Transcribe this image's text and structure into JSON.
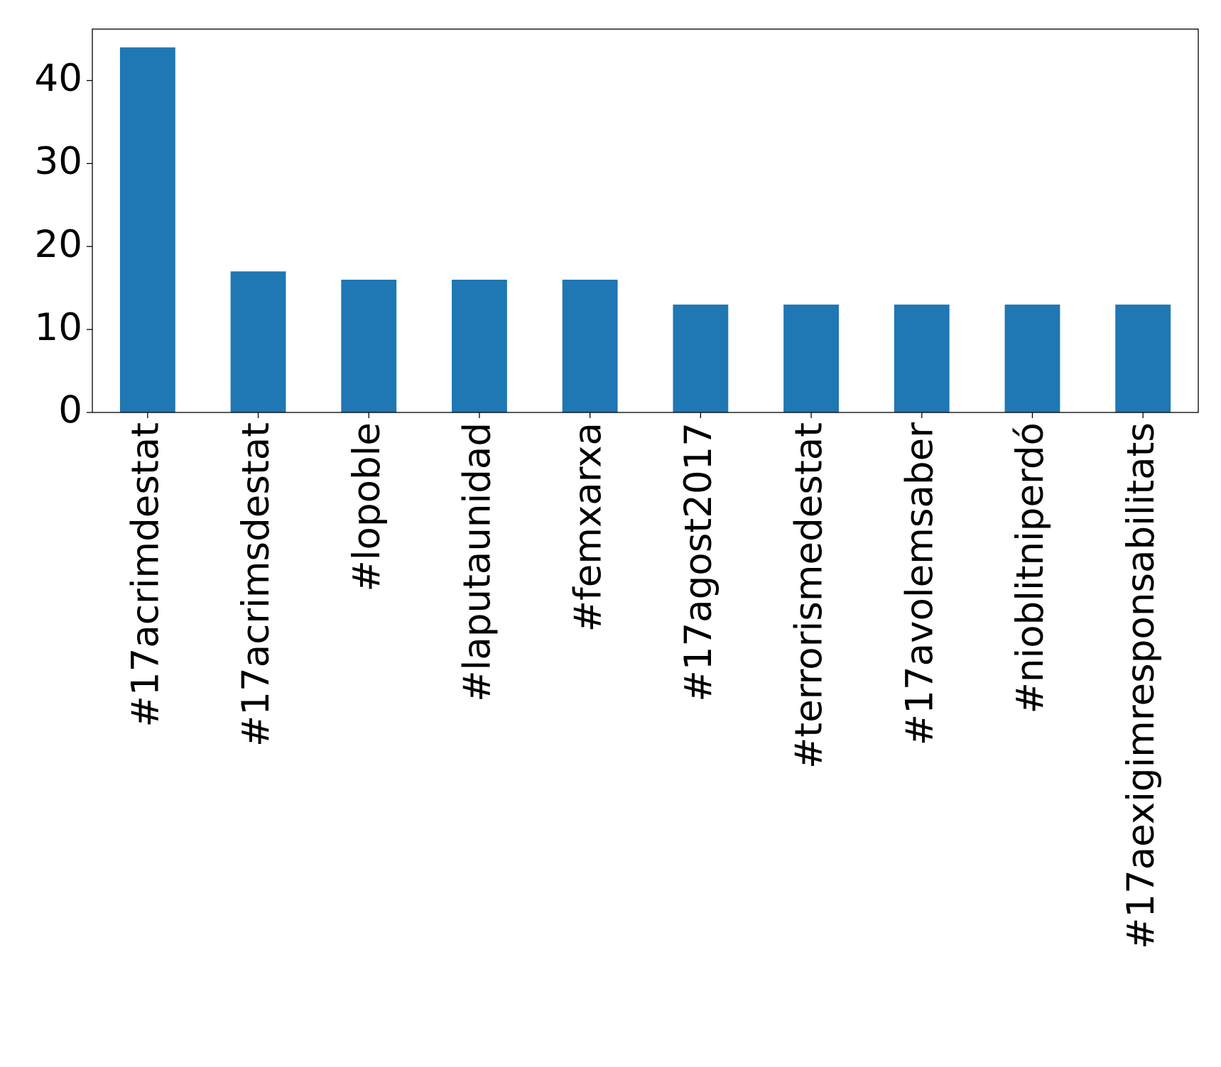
{
  "chart_data": {
    "type": "bar",
    "categories": [
      "#17acrimdestat",
      "#17acrimsdestat",
      "#lopoble",
      "#laputaunidad",
      "#femxarxa",
      "#17agost2017",
      "#terrorismedestat",
      "#17avolemsaber",
      "#nioblitniperdó",
      "#17aexigimresponsabilitats"
    ],
    "values": [
      44,
      17,
      16,
      16,
      16,
      13,
      13,
      13,
      13,
      13
    ],
    "color": "#1f77b4",
    "ylim": [
      0,
      46.2
    ],
    "yticks": [
      0,
      10,
      20,
      30,
      40
    ],
    "grid": false
  }
}
